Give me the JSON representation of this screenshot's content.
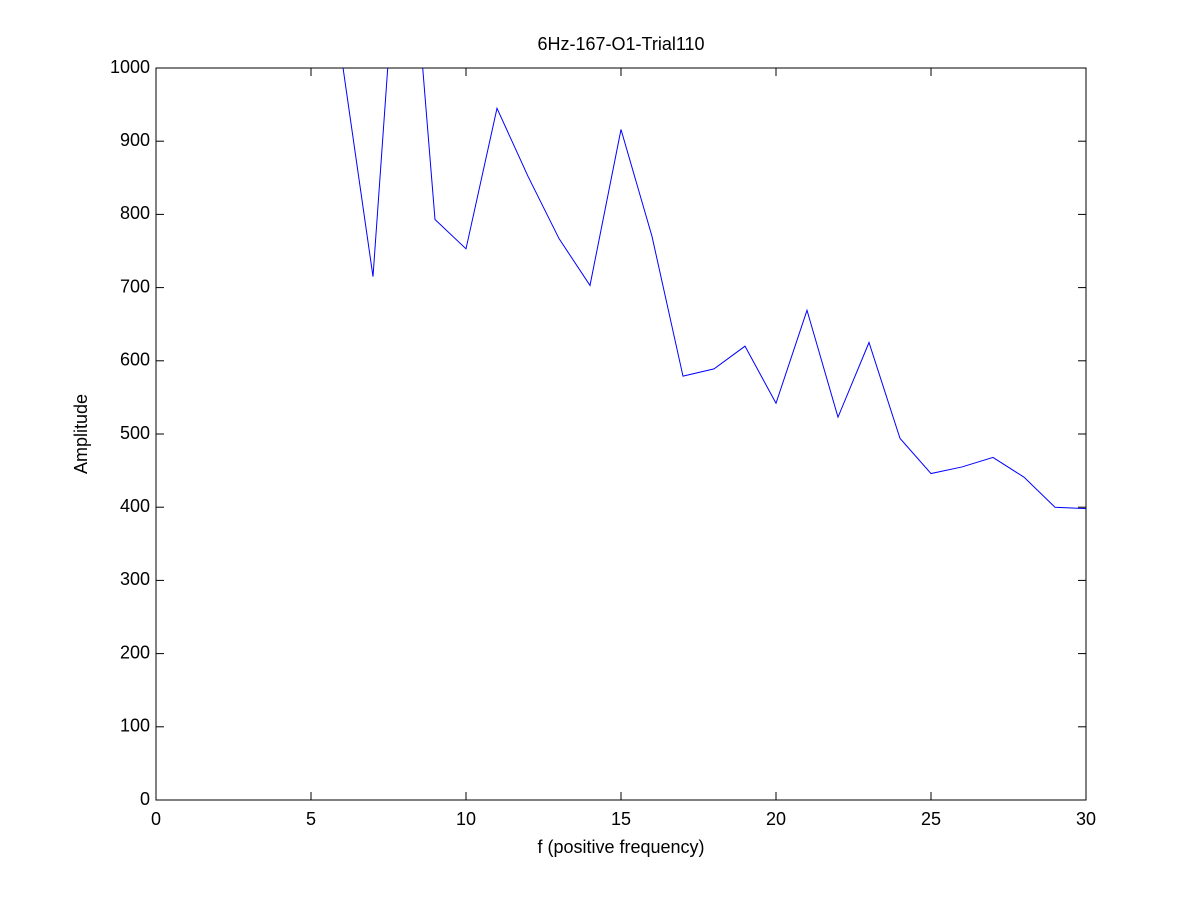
{
  "chart_data": {
    "type": "line",
    "title": "6Hz-167-O1-Trial110",
    "x_label": "f (positive frequency)",
    "y_label": "Amplitude",
    "x": [
      6,
      7,
      8,
      9,
      10,
      11,
      12,
      13,
      14,
      15,
      16,
      17,
      18,
      19,
      20,
      21,
      22,
      23,
      24,
      25,
      26,
      27,
      28,
      29,
      30
    ],
    "series": [
      {
        "color": "#0000ff",
        "values": [
          1010,
          715,
          1315,
          793,
          753,
          945,
          852,
          767,
          703,
          916,
          770,
          579,
          589,
          620,
          542,
          669,
          523,
          625,
          494,
          446,
          455,
          468,
          441,
          400,
          398
        ]
      }
    ],
    "xlim": [
      0,
      30
    ],
    "xticks": [
      0,
      5,
      10,
      15,
      20,
      25,
      30
    ],
    "ylim": [
      0,
      1000
    ],
    "yticks": [
      0,
      100,
      200,
      300,
      400,
      500,
      600,
      700,
      800,
      900,
      1000
    ]
  }
}
